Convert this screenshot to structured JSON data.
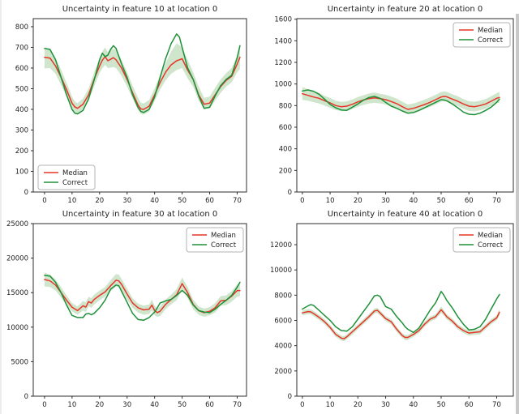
{
  "figure": {
    "background": "#ffffff",
    "left_edge_color": "#ececec",
    "right_edge_color": "#c9c9c9",
    "text_color": "#1f1f1f",
    "spine_color": "#2e2e2e",
    "median_color": "#e73527",
    "correct_color": "#1e9138",
    "band_color": "#cfe6cd",
    "legend_border": "#b3b3b3",
    "legend_bg": "#ffffff",
    "legend_labels": [
      "Median",
      "Correct"
    ]
  },
  "chart_data": [
    {
      "type": "line",
      "title": "Uncertainty in feature 10 at location 0",
      "xlabel": "",
      "ylabel": "",
      "grid": false,
      "legend_position": "lower-left",
      "xlim": [
        -4.1,
        73.4
      ],
      "ylim": [
        0,
        839
      ],
      "xticks": [
        0,
        10,
        20,
        30,
        40,
        50,
        60,
        70
      ],
      "yticks": [
        0,
        100,
        200,
        300,
        400,
        500,
        600,
        700,
        800
      ],
      "x": [
        0,
        2,
        4,
        6,
        8,
        10,
        11,
        12,
        14,
        16,
        18,
        20,
        21,
        22,
        23,
        24,
        25,
        26,
        28,
        30,
        32,
        34,
        35,
        36,
        38,
        40,
        42,
        44,
        46,
        48,
        49,
        50,
        52,
        54,
        56,
        58,
        60,
        62,
        64,
        66,
        68,
        70,
        71
      ],
      "series": [
        {
          "name": "Median",
          "color_key": "median_color",
          "values": [
            652,
            648,
            610,
            555,
            495,
            430,
            412,
            405,
            425,
            470,
            545,
            610,
            638,
            655,
            635,
            642,
            650,
            640,
            600,
            545,
            480,
            420,
            402,
            400,
            415,
            470,
            530,
            580,
            615,
            635,
            640,
            645,
            590,
            545,
            470,
            425,
            430,
            470,
            510,
            540,
            560,
            620,
            652
          ]
        },
        {
          "name": "Correct",
          "color_key": "correct_color",
          "values": [
            695,
            690,
            640,
            555,
            470,
            400,
            382,
            378,
            395,
            450,
            540,
            640,
            672,
            655,
            662,
            690,
            708,
            695,
            620,
            555,
            470,
            408,
            390,
            385,
            400,
            460,
            555,
            645,
            718,
            765,
            750,
            700,
            600,
            545,
            465,
            405,
            410,
            465,
            515,
            545,
            565,
            650,
            708
          ]
        }
      ],
      "band": {
        "lower": [
          598,
          600,
          572,
          518,
          462,
          406,
          388,
          380,
          400,
          442,
          510,
          575,
          598,
          615,
          600,
          602,
          605,
          600,
          562,
          510,
          452,
          398,
          378,
          375,
          390,
          440,
          495,
          540,
          572,
          590,
          595,
          600,
          550,
          510,
          442,
          400,
          405,
          442,
          480,
          510,
          530,
          580,
          595
        ],
        "upper": [
          700,
          690,
          650,
          592,
          528,
          462,
          438,
          430,
          452,
          500,
          578,
          650,
          680,
          700,
          678,
          688,
          692,
          688,
          640,
          580,
          515,
          455,
          432,
          428,
          445,
          502,
          565,
          622,
          680,
          720,
          710,
          700,
          640,
          580,
          510,
          456,
          462,
          505,
          545,
          575,
          600,
          660,
          700
        ]
      }
    },
    {
      "type": "line",
      "title": "Uncertainty in feature 20 at location 0",
      "xlabel": "",
      "ylabel": "",
      "grid": false,
      "legend_position": "upper-right",
      "xlim": [
        -2.0,
        76.0
      ],
      "ylim": [
        0,
        1605
      ],
      "xticks": [
        0,
        10,
        20,
        30,
        40,
        50,
        60,
        70
      ],
      "yticks": [
        0,
        200,
        400,
        600,
        800,
        1000,
        1200,
        1400,
        1600
      ],
      "x": [
        0,
        2,
        4,
        6,
        8,
        10,
        12,
        14,
        16,
        18,
        20,
        22,
        24,
        26,
        28,
        30,
        32,
        34,
        36,
        38,
        40,
        42,
        44,
        46,
        48,
        50,
        51,
        52,
        54,
        56,
        58,
        60,
        62,
        64,
        66,
        68,
        70,
        71
      ],
      "series": [
        {
          "name": "Median",
          "color_key": "median_color",
          "values": [
            910,
            895,
            880,
            868,
            845,
            825,
            800,
            790,
            795,
            812,
            835,
            852,
            865,
            872,
            865,
            855,
            838,
            818,
            790,
            765,
            775,
            792,
            810,
            830,
            855,
            880,
            885,
            882,
            860,
            840,
            815,
            795,
            790,
            800,
            815,
            840,
            868,
            875
          ]
        },
        {
          "name": "Correct",
          "color_key": "correct_color",
          "values": [
            935,
            945,
            933,
            905,
            860,
            810,
            780,
            760,
            756,
            785,
            815,
            850,
            875,
            885,
            868,
            830,
            795,
            775,
            750,
            730,
            736,
            755,
            780,
            805,
            830,
            855,
            852,
            845,
            815,
            780,
            740,
            720,
            716,
            730,
            755,
            785,
            830,
            860
          ]
        }
      ],
      "band": {
        "lower": [
          852,
          845,
          832,
          820,
          800,
          778,
          758,
          748,
          752,
          768,
          790,
          806,
          820,
          826,
          820,
          810,
          794,
          774,
          748,
          724,
          734,
          750,
          768,
          788,
          810,
          836,
          840,
          838,
          816,
          796,
          770,
          750,
          746,
          756,
          770,
          796,
          822,
          826
        ],
        "upper": [
          972,
          950,
          935,
          918,
          890,
          870,
          845,
          835,
          840,
          856,
          880,
          896,
          912,
          920,
          910,
          900,
          884,
          864,
          836,
          810,
          820,
          836,
          855,
          875,
          900,
          926,
          930,
          928,
          906,
          886,
          860,
          840,
          836,
          846,
          860,
          886,
          915,
          926
        ]
      }
    },
    {
      "type": "line",
      "title": "Uncertainty in feature 30 at location 0",
      "xlabel": "",
      "ylabel": "",
      "grid": false,
      "legend_position": "upper-right",
      "xlim": [
        -4.1,
        73.4
      ],
      "ylim": [
        0,
        25000
      ],
      "xticks": [
        0,
        10,
        20,
        30,
        40,
        50,
        60,
        70
      ],
      "yticks": [
        0,
        5000,
        10000,
        15000,
        20000,
        25000
      ],
      "x": [
        0,
        2,
        4,
        6,
        8,
        10,
        12,
        14,
        15,
        16,
        17,
        18,
        20,
        22,
        24,
        26,
        27,
        28,
        30,
        32,
        34,
        36,
        38,
        39,
        40,
        41,
        42,
        44,
        46,
        48,
        50,
        52,
        54,
        56,
        58,
        60,
        62,
        64,
        66,
        68,
        70,
        71
      ],
      "series": [
        {
          "name": "Median",
          "color_key": "median_color",
          "values": [
            16900,
            16700,
            16100,
            15000,
            13900,
            12900,
            12400,
            13100,
            12900,
            13700,
            13500,
            14000,
            14600,
            15100,
            16000,
            16800,
            16700,
            16200,
            14800,
            13500,
            12800,
            12500,
            12600,
            13200,
            12400,
            12100,
            12300,
            13300,
            14000,
            14700,
            16300,
            15000,
            13300,
            12400,
            12100,
            12300,
            12800,
            13800,
            13900,
            14500,
            15300,
            15300
          ]
        },
        {
          "name": "Correct",
          "color_key": "correct_color",
          "values": [
            17500,
            17400,
            16500,
            15000,
            13200,
            11700,
            11400,
            11400,
            11900,
            12000,
            11800,
            12000,
            12800,
            13900,
            15500,
            16100,
            16000,
            15200,
            13600,
            12000,
            11100,
            11000,
            11400,
            11800,
            12200,
            12800,
            13500,
            13800,
            14000,
            14600,
            15300,
            14600,
            13200,
            12400,
            12200,
            12100,
            12600,
            13300,
            13900,
            14600,
            15800,
            16500
          ]
        }
      ],
      "band": {
        "lower": [
          15900,
          15800,
          15300,
          14300,
          13200,
          12300,
          11800,
          12400,
          12200,
          13000,
          12800,
          13300,
          13900,
          14400,
          15200,
          15900,
          15800,
          15300,
          14000,
          12800,
          12100,
          11800,
          11900,
          12400,
          11700,
          11500,
          11600,
          12600,
          13300,
          13900,
          15400,
          14200,
          12600,
          11800,
          11500,
          11700,
          12100,
          13100,
          13200,
          13700,
          14400,
          14500
        ],
        "upper": [
          17900,
          17600,
          16900,
          15800,
          14600,
          13500,
          13000,
          13800,
          13600,
          14400,
          14200,
          14700,
          15300,
          15800,
          16800,
          17700,
          17600,
          17000,
          15600,
          14200,
          13400,
          13100,
          13300,
          14000,
          13100,
          12700,
          13000,
          14000,
          14700,
          15500,
          17200,
          15800,
          14000,
          13000,
          12700,
          12900,
          13500,
          14500,
          14600,
          15200,
          16200,
          16200
        ]
      }
    },
    {
      "type": "line",
      "title": "Uncertainty in feature 40 at location 0",
      "xlabel": "",
      "ylabel": "",
      "grid": false,
      "legend_position": "upper-right",
      "xlim": [
        -2.0,
        76.0
      ],
      "ylim": [
        0,
        13670
      ],
      "xticks": [
        0,
        10,
        20,
        30,
        40,
        50,
        60,
        70
      ],
      "yticks": [
        0,
        2000,
        4000,
        6000,
        8000,
        10000,
        12000
      ],
      "x": [
        0,
        2,
        3,
        4,
        6,
        8,
        10,
        12,
        14,
        15,
        16,
        18,
        20,
        22,
        24,
        26,
        27,
        28,
        30,
        32,
        34,
        36,
        37,
        38,
        40,
        42,
        44,
        46,
        48,
        50,
        51,
        52,
        54,
        56,
        58,
        60,
        62,
        64,
        66,
        68,
        70,
        71
      ],
      "series": [
        {
          "name": "Median",
          "color_key": "median_color",
          "values": [
            6600,
            6700,
            6680,
            6550,
            6250,
            5900,
            5450,
            4900,
            4600,
            4550,
            4700,
            5100,
            5500,
            5900,
            6300,
            6750,
            6800,
            6600,
            6150,
            5900,
            5300,
            4800,
            4650,
            4650,
            4900,
            5200,
            5700,
            6100,
            6300,
            6850,
            6600,
            6300,
            5950,
            5500,
            5200,
            5000,
            5050,
            5100,
            5500,
            5900,
            6200,
            6650
          ]
        },
        {
          "name": "Correct",
          "color_key": "correct_color",
          "values": [
            6900,
            7150,
            7250,
            7200,
            6800,
            6400,
            6000,
            5500,
            5200,
            5180,
            5150,
            5500,
            6100,
            6700,
            7300,
            7950,
            8000,
            7900,
            7100,
            6900,
            6300,
            5800,
            5500,
            5300,
            5050,
            5400,
            6100,
            6800,
            7400,
            8300,
            8000,
            7600,
            7000,
            6300,
            5700,
            5250,
            5300,
            5500,
            6100,
            6900,
            7700,
            8050
          ]
        }
      ],
      "band": {
        "lower": [
          6400,
          6500,
          6480,
          6350,
          6050,
          5700,
          5250,
          4700,
          4400,
          4350,
          4500,
          4900,
          5300,
          5700,
          6100,
          6550,
          6600,
          6400,
          5950,
          5700,
          5100,
          4600,
          4450,
          4450,
          4700,
          5000,
          5500,
          5900,
          6100,
          6600,
          6380,
          6100,
          5750,
          5300,
          5000,
          4800,
          4850,
          4900,
          5300,
          5700,
          6000,
          6400
        ],
        "upper": [
          6800,
          6900,
          6880,
          6750,
          6450,
          6100,
          5650,
          5100,
          4800,
          4750,
          4900,
          5300,
          5700,
          6100,
          6500,
          6950,
          7000,
          6800,
          6350,
          6100,
          5500,
          5000,
          4850,
          4850,
          5100,
          5400,
          5900,
          6300,
          6500,
          7100,
          6820,
          6500,
          6150,
          5700,
          5400,
          5200,
          5250,
          5300,
          5700,
          6100,
          6400,
          6900
        ]
      }
    }
  ]
}
